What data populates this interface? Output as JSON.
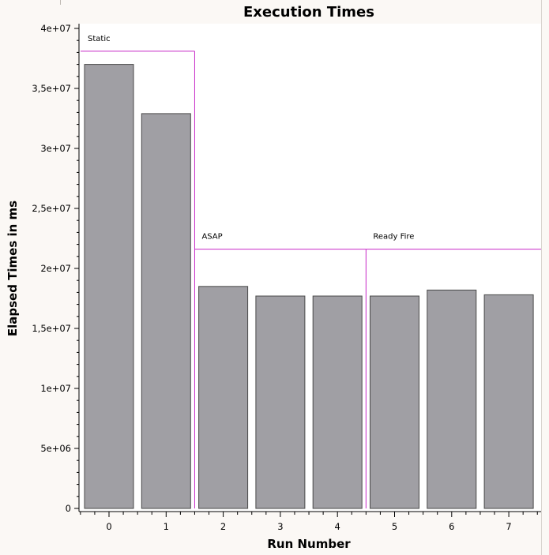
{
  "chart_data": {
    "type": "bar",
    "title": "Execution Times",
    "xlabel": "Run Number",
    "ylabel": "Elapsed Times in ms",
    "categories": [
      "0",
      "1",
      "2",
      "3",
      "4",
      "5",
      "6",
      "7"
    ],
    "values": [
      37000000,
      32900000,
      18500000,
      17700000,
      17700000,
      17700000,
      18200000,
      17800000
    ],
    "ylim": [
      0,
      40000000
    ],
    "yticks": [
      {
        "value": 0,
        "label": "0"
      },
      {
        "value": 5000000,
        "label": "5e+06"
      },
      {
        "value": 10000000,
        "label": "1e+07"
      },
      {
        "value": 15000000,
        "label": "1,5e+07"
      },
      {
        "value": 20000000,
        "label": "2e+07"
      },
      {
        "value": 25000000,
        "label": "2,5e+07"
      },
      {
        "value": 30000000,
        "label": "3e+07"
      },
      {
        "value": 35000000,
        "label": "3,5e+07"
      },
      {
        "value": 40000000,
        "label": "4e+07"
      }
    ],
    "groups": [
      {
        "label": "Static",
        "first_run": 0,
        "last_run": 1,
        "level": 38100000
      },
      {
        "label": "ASAP",
        "first_run": 2,
        "last_run": 4,
        "level": 21600000
      },
      {
        "label": "Ready Fire",
        "first_run": 5,
        "last_run": 7,
        "level": 21600000
      }
    ],
    "grid": false,
    "colors": {
      "bar_fill": "#a09fa4",
      "bar_stroke": "#4a4a4a",
      "group_line": "#c82ac8",
      "plot_background": "#ffffff",
      "page_background": "#fbf8f5",
      "axis": "#000000"
    }
  }
}
